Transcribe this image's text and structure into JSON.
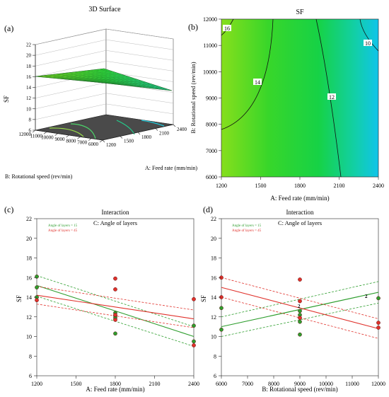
{
  "panels": {
    "a": {
      "tag": "(a)",
      "title": "3D Surface",
      "zlabel": "SF",
      "z_ticks": [
        "22",
        "20",
        "18",
        "16",
        "14",
        "12",
        "10",
        "8",
        "6"
      ],
      "y_label": "B: Rotational speed (rev/min)",
      "y_ticks": [
        "12000",
        "11000",
        "10000",
        "9000",
        "8000",
        "7000",
        "6000"
      ],
      "x_label": "A: Feed rate (mm/min)",
      "x_ticks": [
        "1200",
        "1500",
        "1800",
        "2100",
        "2400"
      ]
    },
    "b": {
      "tag": "(b)",
      "title": "SF",
      "xlabel": "A: Feed rate (mm/min)",
      "ylabel": "B: Rotational speed (rev/min)",
      "x_ticks": [
        "1200",
        "1500",
        "1800",
        "2100",
        "2400"
      ],
      "y_ticks": [
        "6000",
        "7000",
        "8000",
        "9000",
        "10000",
        "11000",
        "12000"
      ],
      "contour_labels": [
        "16",
        "14",
        "12",
        "10"
      ]
    },
    "c": {
      "tag": "(c)",
      "title": "Interaction",
      "subtitle": "C: Angle of layers",
      "xlabel": "A: Feed rate (mm/min)",
      "ylabel": "SF",
      "legend": [
        "Angle of layers = 15",
        "Angle of layers = 45"
      ],
      "x_ticks": [
        "1200",
        "1500",
        "1800",
        "2100",
        "2400"
      ],
      "y_ticks": [
        "6",
        "8",
        "10",
        "12",
        "14",
        "16",
        "18",
        "20",
        "22"
      ]
    },
    "d": {
      "tag": "(d)",
      "title": "Interaction",
      "subtitle": "C: Angle of layers",
      "xlabel": "B: Rotational speed (rev/min)",
      "ylabel": "SF",
      "legend": [
        "Angle of layers = 15",
        "Angle of layers = 45"
      ],
      "x_ticks": [
        "6000",
        "7000",
        "8000",
        "9000",
        "10000",
        "11000",
        "12000"
      ],
      "y_ticks": [
        "6",
        "8",
        "10",
        "12",
        "14",
        "16",
        "18",
        "20",
        "22"
      ],
      "point_labels": [
        "2",
        "2"
      ]
    }
  },
  "colors": {
    "green": "#2e9e2e",
    "red": "#e0312b",
    "contour_hi": "#7ddc1f",
    "contour_lo": "#10c8e8"
  },
  "chart_data": [
    {
      "type": "surface",
      "panel": "a",
      "x": [
        1200,
        2400
      ],
      "y": [
        6000,
        12000
      ],
      "z_corners": {
        "x1200_y12000": 16.3,
        "x2400_y12000": 9.6,
        "x1200_y6000": 13.6,
        "x2400_y6000": 12.2
      },
      "zlim": [
        6,
        22
      ]
    },
    {
      "type": "heatmap",
      "panel": "b",
      "xlim": [
        1200,
        2400
      ],
      "ylim": [
        6000,
        12000
      ],
      "contours": [
        16,
        14,
        12,
        10
      ]
    },
    {
      "type": "line",
      "panel": "c",
      "xlim": [
        1200,
        2400
      ],
      "ylim": [
        6,
        22
      ],
      "series": [
        {
          "name": "Angle of layers = 15",
          "x": [
            1200,
            2400
          ],
          "y": [
            15.2,
            10.0
          ],
          "ci_low": [
            14.1,
            9.0
          ],
          "ci_high": [
            16.2,
            11.0
          ]
        },
        {
          "name": "Angle of layers = 45",
          "x": [
            1200,
            2400
          ],
          "y": [
            14.2,
            11.8
          ],
          "ci_low": [
            13.3,
            10.9
          ],
          "ci_high": [
            15.1,
            12.7
          ]
        }
      ],
      "points": [
        {
          "series": "Angle of layers = 15",
          "x": 1200,
          "y": 16.1
        },
        {
          "series": "Angle of layers = 15",
          "x": 1200,
          "y": 15.0
        },
        {
          "series": "Angle of layers = 15",
          "x": 1200,
          "y": 14.0
        },
        {
          "series": "Angle of layers = 45",
          "x": 1200,
          "y": 13.7
        },
        {
          "series": "Angle of layers = 45",
          "x": 1800,
          "y": 15.9
        },
        {
          "series": "Angle of layers = 45",
          "x": 1800,
          "y": 14.8
        },
        {
          "series": "Angle of layers = 15",
          "x": 1800,
          "y": 12.4
        },
        {
          "series": "Angle of layers = 15",
          "x": 1800,
          "y": 12.1
        },
        {
          "series": "Angle of layers = 15",
          "x": 1800,
          "y": 11.9
        },
        {
          "series": "Angle of layers = 45",
          "x": 1800,
          "y": 12.2
        },
        {
          "series": "Angle of layers = 45",
          "x": 1800,
          "y": 11.7
        },
        {
          "series": "Angle of layers = 15",
          "x": 1800,
          "y": 10.3
        },
        {
          "series": "Angle of layers = 45",
          "x": 2400,
          "y": 13.8
        },
        {
          "series": "Angle of layers = 15",
          "x": 2400,
          "y": 11.1
        },
        {
          "series": "Angle of layers = 15",
          "x": 2400,
          "y": 9.5
        },
        {
          "series": "Angle of layers = 45",
          "x": 2400,
          "y": 9.1
        }
      ]
    },
    {
      "type": "line",
      "panel": "d",
      "xlim": [
        6000,
        12000
      ],
      "ylim": [
        6,
        22
      ],
      "series": [
        {
          "name": "Angle of layers = 15",
          "x": [
            6000,
            12000
          ],
          "y": [
            11.0,
            14.5
          ],
          "ci_low": [
            10.0,
            13.4
          ],
          "ci_high": [
            12.0,
            15.6
          ]
        },
        {
          "name": "Angle of layers = 45",
          "x": [
            6000,
            12000
          ],
          "y": [
            15.0,
            10.8
          ],
          "ci_low": [
            14.0,
            9.8
          ],
          "ci_high": [
            16.0,
            11.8
          ]
        }
      ],
      "points": [
        {
          "series": "Angle of layers = 45",
          "x": 6000,
          "y": 16.0
        },
        {
          "series": "Angle of layers = 45",
          "x": 6000,
          "y": 14.0
        },
        {
          "series": "Angle of layers = 15",
          "x": 6000,
          "y": 12.9
        },
        {
          "series": "Angle of layers = 15",
          "x": 6000,
          "y": 10.7
        },
        {
          "series": "Angle of layers = 45",
          "x": 9000,
          "y": 15.8
        },
        {
          "series": "Angle of layers = 45",
          "x": 9000,
          "y": 13.6
        },
        {
          "series": "Angle of layers = 15",
          "x": 9000,
          "y": 12.6
        },
        {
          "series": "Angle of layers = 15",
          "x": 9000,
          "y": 12.2
        },
        {
          "series": "Angle of layers = 45",
          "x": 9000,
          "y": 11.9
        },
        {
          "series": "Angle of layers = 15",
          "x": 9000,
          "y": 11.5
        },
        {
          "series": "Angle of layers = 15",
          "x": 9000,
          "y": 10.2
        },
        {
          "series": "Angle of layers = 15",
          "x": 12000,
          "y": 13.9
        },
        {
          "series": "Angle of layers = 45",
          "x": 12000,
          "y": 11.4
        },
        {
          "series": "Angle of layers = 45",
          "x": 12000,
          "y": 10.9
        }
      ]
    }
  ]
}
